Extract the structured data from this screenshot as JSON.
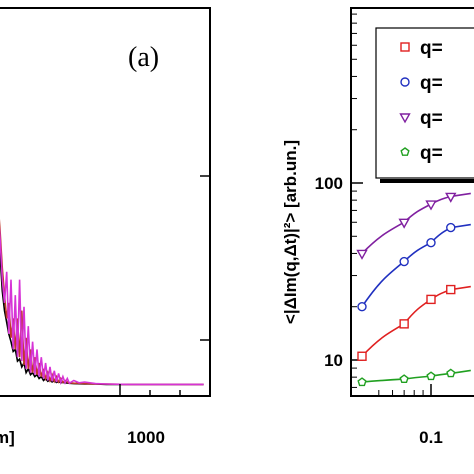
{
  "chart_data": [
    {
      "panel": "(a)",
      "type": "line",
      "xlabel": "m]",
      "x_tick_labels": [
        "1000"
      ],
      "xlim": [
        0,
        1900
      ],
      "ylim": [
        0,
        1
      ],
      "series": [
        {
          "color": "#000000",
          "values": [
            [
              0,
              0.52
            ],
            [
              20,
              0.36
            ],
            [
              40,
              0.27
            ],
            [
              60,
              0.22
            ],
            [
              80,
              0.19
            ],
            [
              100,
              0.16
            ],
            [
              120,
              0.14
            ],
            [
              140,
              0.115
            ],
            [
              160,
              0.12
            ],
            [
              180,
              0.09
            ],
            [
              200,
              0.095
            ],
            [
              220,
              0.075
            ],
            [
              240,
              0.085
            ],
            [
              260,
              0.06
            ],
            [
              280,
              0.07
            ],
            [
              300,
              0.055
            ],
            [
              320,
              0.06
            ],
            [
              340,
              0.05
            ],
            [
              360,
              0.055
            ],
            [
              380,
              0.045
            ],
            [
              400,
              0.05
            ],
            [
              420,
              0.04
            ],
            [
              440,
              0.045
            ],
            [
              460,
              0.038
            ],
            [
              480,
              0.042
            ],
            [
              500,
              0.036
            ],
            [
              520,
              0.04
            ],
            [
              540,
              0.035
            ],
            [
              560,
              0.037
            ],
            [
              580,
              0.034
            ],
            [
              600,
              0.035
            ],
            [
              650,
              0.033
            ],
            [
              700,
              0.032
            ],
            [
              800,
              0.031
            ],
            [
              900,
              0.031
            ],
            [
              1000,
              0.03
            ],
            [
              1200,
              0.03
            ],
            [
              1500,
              0.03
            ],
            [
              1900,
              0.03
            ]
          ]
        },
        {
          "color": "#c0392b",
          "values": [
            [
              0,
              0.5
            ],
            [
              20,
              0.42
            ],
            [
              40,
              0.33
            ],
            [
              60,
              0.26
            ],
            [
              80,
              0.2
            ],
            [
              100,
              0.24
            ],
            [
              120,
              0.15
            ],
            [
              140,
              0.2
            ],
            [
              160,
              0.12
            ],
            [
              180,
              0.2
            ],
            [
              200,
              0.1
            ],
            [
              220,
              0.22
            ],
            [
              240,
              0.08
            ],
            [
              260,
              0.15
            ],
            [
              280,
              0.07
            ],
            [
              300,
              0.12
            ],
            [
              320,
              0.06
            ],
            [
              340,
              0.1
            ],
            [
              360,
              0.055
            ],
            [
              380,
              0.085
            ],
            [
              400,
              0.05
            ],
            [
              420,
              0.07
            ],
            [
              440,
              0.045
            ],
            [
              460,
              0.06
            ],
            [
              480,
              0.04
            ],
            [
              500,
              0.055
            ],
            [
              520,
              0.038
            ],
            [
              540,
              0.05
            ],
            [
              560,
              0.036
            ],
            [
              580,
              0.045
            ],
            [
              600,
              0.035
            ],
            [
              620,
              0.04
            ],
            [
              650,
              0.034
            ],
            [
              700,
              0.033
            ],
            [
              800,
              0.032
            ],
            [
              900,
              0.031
            ],
            [
              1000,
              0.031
            ],
            [
              1200,
              0.03
            ],
            [
              1500,
              0.03
            ],
            [
              1900,
              0.03
            ]
          ]
        },
        {
          "color": "#d633d6",
          "values": [
            [
              0,
              0.48
            ],
            [
              20,
              0.4
            ],
            [
              40,
              0.3
            ],
            [
              60,
              0.24
            ],
            [
              80,
              0.32
            ],
            [
              100,
              0.16
            ],
            [
              120,
              0.3
            ],
            [
              140,
              0.12
            ],
            [
              160,
              0.26
            ],
            [
              180,
              0.1
            ],
            [
              200,
              0.3
            ],
            [
              220,
              0.09
            ],
            [
              240,
              0.23
            ],
            [
              260,
              0.07
            ],
            [
              280,
              0.18
            ],
            [
              300,
              0.06
            ],
            [
              320,
              0.14
            ],
            [
              340,
              0.055
            ],
            [
              360,
              0.12
            ],
            [
              380,
              0.05
            ],
            [
              400,
              0.1
            ],
            [
              420,
              0.045
            ],
            [
              440,
              0.085
            ],
            [
              460,
              0.04
            ],
            [
              480,
              0.075
            ],
            [
              500,
              0.038
            ],
            [
              520,
              0.065
            ],
            [
              540,
              0.036
            ],
            [
              560,
              0.058
            ],
            [
              580,
              0.035
            ],
            [
              600,
              0.05
            ],
            [
              620,
              0.034
            ],
            [
              640,
              0.045
            ],
            [
              660,
              0.033
            ],
            [
              700,
              0.04
            ],
            [
              750,
              0.034
            ],
            [
              800,
              0.036
            ],
            [
              900,
              0.032
            ],
            [
              1000,
              0.031
            ],
            [
              1200,
              0.03
            ],
            [
              1500,
              0.03
            ],
            [
              1900,
              0.03
            ]
          ]
        }
      ]
    },
    {
      "panel": "(b)",
      "type": "scatter",
      "ylabel": "<|ΔIm(q,Δt)|²> [arb.un.]",
      "y_scale": "log",
      "x_scale": "log",
      "x_tick_labels": [
        "0.1"
      ],
      "y_tick_labels": [
        "10",
        "100"
      ],
      "ylim": [
        5,
        1000
      ],
      "xlim": [
        0.03,
        0.25
      ],
      "legend_position": "top-right",
      "series": [
        {
          "name": "q=",
          "color": "#e02020",
          "marker": "square",
          "x": [
            0.04,
            0.07,
            0.1,
            0.13
          ],
          "y": [
            10.5,
            16,
            22,
            25
          ]
        },
        {
          "name": "q=",
          "color": "#2030c0",
          "marker": "circle",
          "x": [
            0.04,
            0.07,
            0.1,
            0.13
          ],
          "y": [
            20,
            36,
            46,
            56
          ]
        },
        {
          "name": "q=",
          "color": "#8020a0",
          "marker": "triangle-down",
          "x": [
            0.04,
            0.07,
            0.1,
            0.13
          ],
          "y": [
            40,
            60,
            76,
            84
          ]
        },
        {
          "name": "q=",
          "color": "#20a020",
          "marker": "pentagon",
          "x": [
            0.04,
            0.07,
            0.1,
            0.13
          ],
          "y": [
            7.5,
            7.8,
            8.1,
            8.4
          ]
        }
      ]
    }
  ]
}
